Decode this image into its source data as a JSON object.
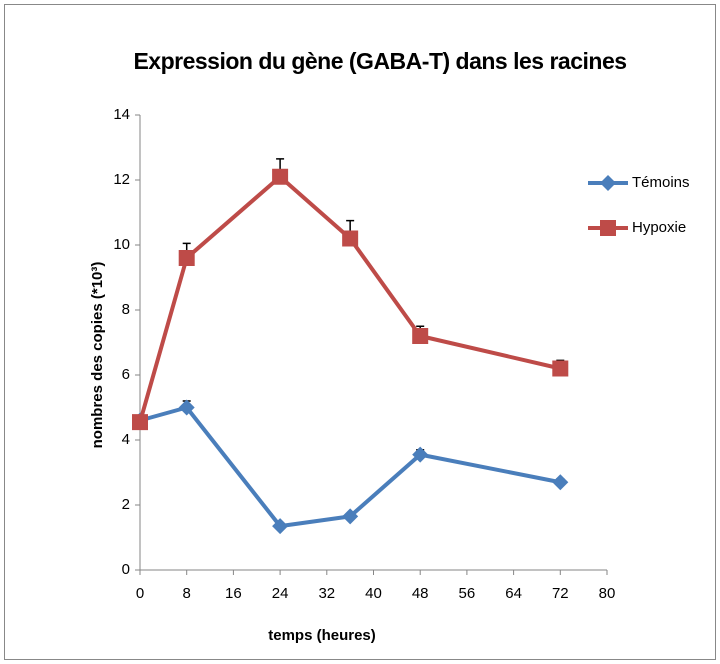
{
  "chart_data": {
    "type": "line",
    "title": "Expression du gène (GABA-T) dans les racines",
    "x_label": "temps (heures)",
    "y_label": "nombres des copies  (*10³)",
    "x": [
      0,
      8,
      24,
      36,
      48,
      72
    ],
    "series": [
      {
        "name": "Témoins",
        "color": "#4a7ebb",
        "marker": "diamond",
        "values": [
          4.6,
          5.0,
          1.35,
          1.65,
          3.55,
          2.7
        ],
        "errors": [
          0.05,
          0.2,
          0.05,
          0.05,
          0.15,
          0.1
        ]
      },
      {
        "name": "Hypoxie",
        "color": "#be4b48",
        "marker": "square",
        "values": [
          4.55,
          9.6,
          12.1,
          10.2,
          7.2,
          6.2
        ],
        "errors": [
          0.1,
          0.45,
          0.55,
          0.55,
          0.3,
          0.25
        ]
      }
    ],
    "xlim": [
      0,
      80
    ],
    "xticks": [
      0,
      8,
      16,
      24,
      32,
      40,
      48,
      56,
      64,
      72,
      80
    ],
    "ylim": [
      0,
      14
    ],
    "yticks": [
      0,
      2,
      4,
      6,
      8,
      10,
      12,
      14
    ],
    "grid": false,
    "legend": "right"
  }
}
